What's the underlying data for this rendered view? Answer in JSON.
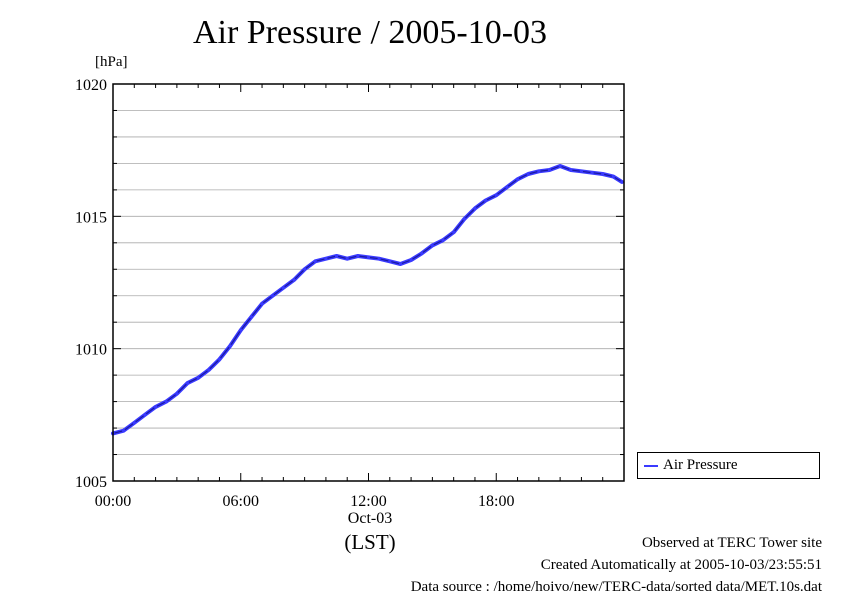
{
  "chart_data": {
    "type": "line",
    "title": "Air Pressure / 2005-10-03",
    "ylabel": "[hPa]",
    "xlabel": "(LST)",
    "date_label": "Oct-03",
    "ylim": [
      1005,
      1020
    ],
    "xlim": [
      0,
      24
    ],
    "y_ticks": [
      "1005",
      "1010",
      "1015",
      "1020"
    ],
    "x_ticks": [
      "00:00",
      "06:00",
      "12:00",
      "18:00"
    ],
    "grid": true,
    "legend_position": "bottom-right",
    "series": [
      {
        "name": "Air Pressure",
        "color": "#3a3aff",
        "x": [
          0,
          0.5,
          1,
          1.5,
          2,
          2.5,
          3,
          3.5,
          4,
          4.5,
          5,
          5.5,
          6,
          6.5,
          7,
          7.5,
          8,
          8.5,
          9,
          9.5,
          10,
          10.5,
          11,
          11.5,
          12,
          12.5,
          13,
          13.5,
          14,
          14.5,
          15,
          15.5,
          16,
          16.5,
          17,
          17.5,
          18,
          18.5,
          19,
          19.5,
          20,
          20.5,
          21,
          21.5,
          22,
          22.5,
          23,
          23.5,
          23.9
        ],
        "y": [
          1006.8,
          1006.9,
          1007.2,
          1007.5,
          1007.8,
          1008.0,
          1008.3,
          1008.7,
          1008.9,
          1009.2,
          1009.6,
          1010.1,
          1010.7,
          1011.2,
          1011.7,
          1012.0,
          1012.3,
          1012.6,
          1013.0,
          1013.3,
          1013.4,
          1013.5,
          1013.4,
          1013.5,
          1013.45,
          1013.4,
          1013.3,
          1013.2,
          1013.35,
          1013.6,
          1013.9,
          1014.1,
          1014.4,
          1014.9,
          1015.3,
          1015.6,
          1015.8,
          1016.1,
          1016.4,
          1016.6,
          1016.7,
          1016.75,
          1016.9,
          1016.75,
          1016.7,
          1016.65,
          1016.6,
          1016.5,
          1016.3
        ]
      }
    ]
  },
  "legend": {
    "label": "Air Pressure"
  },
  "footer": {
    "line1": "Observed at TERC Tower site",
    "line2": "Created Automatically at 2005-10-03/23:55:51",
    "line3": "Data source : /home/hoivo/new/TERC-data/sorted  data/MET.10s.dat"
  }
}
